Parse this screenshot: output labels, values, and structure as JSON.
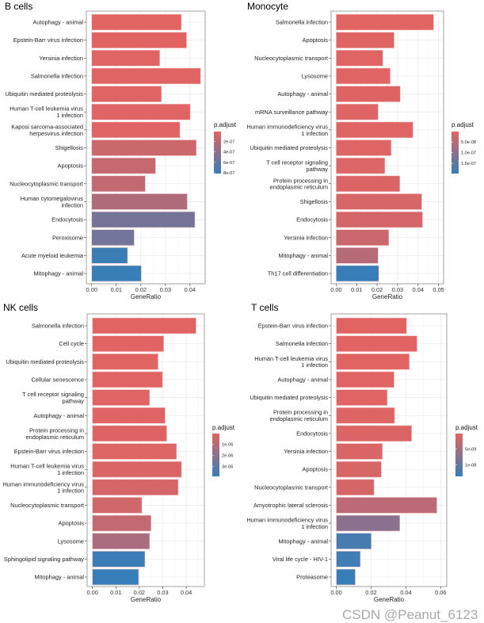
{
  "colors": {
    "low": "#E16462",
    "high": "#377EB8",
    "grid": "#EBEBEB",
    "border": "#9A9A9A"
  },
  "watermark": "CSDN @Peanut_6123",
  "chart_data": [
    {
      "type": "bar",
      "title": "B cells",
      "xlabel": "GeneRatio",
      "legend_title": "p.adjust",
      "legend_placement": "right",
      "grid": true,
      "xlim": [
        0,
        0.044
      ],
      "xticks": [
        "0.00",
        "0.01",
        "0.02",
        "0.03",
        "0.04"
      ],
      "legend_ticks": [
        "2e-07",
        "4e-07",
        "6e-07",
        "8e-07"
      ],
      "legend_tick_values": [
        2e-07,
        4e-07,
        6e-07,
        8e-07
      ],
      "color_limits": [
        1e-08,
        8.15e-07
      ],
      "categories": [
        "Autophagy - animal",
        "Epstein-Barr virus infection",
        "Yersinia infection",
        "Salmonella infection",
        "Ubiquitin mediated proteolysis",
        "Human T-cell leukemia virus\n1 infection",
        "Kaposi sarcoma-associated\nherpesvirus infection",
        "Shigellosis",
        "Apoptosis",
        "Nucleocytoplasmic transport",
        "Human cytomegalovirus\ninfection",
        "Endocytosis",
        "Peroxisome",
        "Acute myeloid leukemia",
        "Mitophagy - animal"
      ],
      "values": [
        0.0365,
        0.0386,
        0.0277,
        0.0443,
        0.0284,
        0.0401,
        0.0359,
        0.0426,
        0.026,
        0.0218,
        0.0389,
        0.042,
        0.0173,
        0.0146,
        0.0202
      ],
      "p_adjust": [
        1e-08,
        1e-08,
        1.5e-08,
        1.5e-08,
        2e-08,
        2e-08,
        2e-08,
        1.2e-07,
        1.4e-07,
        1.5e-07,
        2.4e-07,
        5.2e-07,
        5.3e-07,
        8e-07,
        8.1e-07
      ]
    },
    {
      "type": "bar",
      "title": "Monocyte",
      "xlabel": "GeneRatio",
      "legend_title": "p.adjust",
      "legend_placement": "right",
      "grid": true,
      "xlim": [
        0,
        0.05
      ],
      "xticks": [
        "0.00",
        "0.01",
        "0.02",
        "0.03",
        "0.04",
        "0.05"
      ],
      "legend_ticks": [
        "5.0e-08",
        "1.0e-07",
        "1.5e-07"
      ],
      "legend_tick_values": [
        5e-08,
        1e-07,
        1.5e-07
      ],
      "color_limits": [
        1e-09,
        1.98e-07
      ],
      "categories": [
        "Salmonella infection",
        "Apoptosis",
        "Nucleocytoplasmic transport",
        "Lysosome",
        "Autophagy - animal",
        "mRNA surveillance pathway",
        "Human immunodeficiency virus\n1 infection",
        "Ubiquitin mediated proteolysis",
        "T cell receptor signaling\npathway",
        "Protein processing in\nendoplasmic reticulum",
        "Shigellosis",
        "Endocytosis",
        "Yersinia infection",
        "Mitophagy - animal",
        "Th17 cell differentiation"
      ],
      "values": [
        0.0476,
        0.0283,
        0.0228,
        0.0264,
        0.0313,
        0.0205,
        0.0375,
        0.0269,
        0.0238,
        0.0311,
        0.0418,
        0.0422,
        0.0257,
        0.0205,
        0.0208
      ],
      "p_adjust": [
        1e-09,
        2e-09,
        3e-09,
        3e-09,
        4e-09,
        5e-09,
        5e-09,
        6e-09,
        7e-09,
        8e-09,
        1.4e-08,
        1.6e-08,
        2.8e-08,
        5e-08,
        1.98e-07
      ]
    },
    {
      "type": "bar",
      "title": "NK cells",
      "xlabel": "GeneRatio",
      "legend_title": "p.adjust",
      "legend_placement": "right",
      "grid": true,
      "xlim": [
        0,
        0.0455
      ],
      "xticks": [
        "0.00",
        "0.01",
        "0.02",
        "0.03",
        "0.04"
      ],
      "legend_ticks": [
        "1e-06",
        "2e-06",
        "3e-06"
      ],
      "legend_tick_values": [
        1e-06,
        2e-06,
        3e-06
      ],
      "color_limits": [
        1e-08,
        3.9e-06
      ],
      "categories": [
        "Salmonella infection",
        "Cell cycle",
        "Ubiquitin mediated proteolysis",
        "Cellular senescence",
        "T cell receptor signaling\npathway",
        "Autophagy - animal",
        "Protein processing in\nendoplasmic reticulum",
        "Epstein-Barr virus infection",
        "Human T-cell leukemia virus\n1 infection",
        "Human immunodeficiency virus\n1 infection",
        "Nucleocytoplasmic transport",
        "Apoptosis",
        "Lysosome",
        "Sphingolipid signaling pathway",
        "Mitophagy - animal"
      ],
      "values": [
        0.0442,
        0.0304,
        0.028,
        0.0299,
        0.0244,
        0.031,
        0.0317,
        0.0359,
        0.038,
        0.0366,
        0.0211,
        0.025,
        0.0244,
        0.0224,
        0.0197
      ],
      "p_adjust": [
        1e-08,
        2e-08,
        3e-08,
        4e-08,
        5e-08,
        6e-08,
        8e-08,
        1e-07,
        2e-07,
        3e-07,
        4e-07,
        7e-07,
        1.3e-06,
        3.8e-06,
        3.9e-06
      ]
    },
    {
      "type": "bar",
      "title": "T cells",
      "xlabel": "GeneRatio",
      "legend_title": "p.adjust",
      "legend_placement": "right",
      "grid": true,
      "xlim": [
        0,
        0.0605
      ],
      "xticks": [
        "0.00",
        "0.02",
        "0.04",
        "0.06"
      ],
      "legend_ticks": [
        "5e-09",
        "1e-08"
      ],
      "legend_tick_values": [
        5e-09,
        1e-08
      ],
      "color_limits": [
        1e-11,
        1.37e-08
      ],
      "categories": [
        "Epstein-Barr virus infection",
        "Salmonella infection",
        "Human T-cell leukemia virus\n1 infection",
        "Autophagy - animal",
        "Ubiquitin mediated proteolysis",
        "Protein processing in\nendoplasmic reticulum",
        "Endocytosis",
        "Yersinia infection",
        "Apoptosis",
        "Nucleocytoplasmic transport",
        "Amyotrophic lateral sclerosis",
        "Human immunodeficiency virus\n1 infection",
        "Mitophagy - animal",
        "Viral life cycle - HIV-1",
        "Proteasome"
      ],
      "values": [
        0.0404,
        0.0464,
        0.042,
        0.0332,
        0.0293,
        0.0335,
        0.0433,
        0.0265,
        0.0259,
        0.0217,
        0.0578,
        0.0365,
        0.0201,
        0.0138,
        0.0109
      ],
      "p_adjust": [
        1e-11,
        2e-11,
        5e-11,
        1e-10,
        2e-10,
        3e-10,
        5e-10,
        6e-10,
        8e-10,
        1e-09,
        3e-09,
        7e-09,
        1.25e-08,
        1.3e-08,
        1.37e-08
      ]
    }
  ]
}
